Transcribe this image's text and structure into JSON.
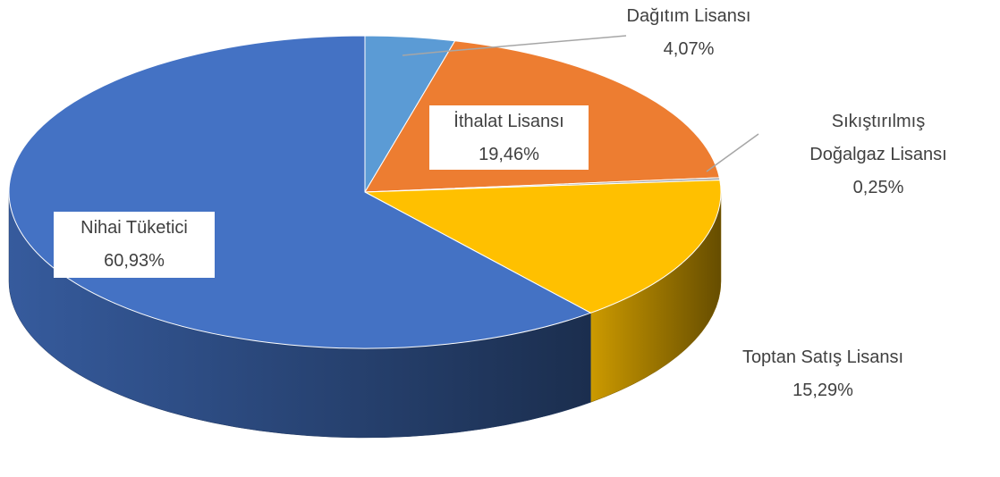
{
  "chart_data": {
    "type": "pie",
    "categories": [
      "Dağıtım Lisansı",
      "İthalat Lisansı",
      "Sıkıştırılmış Doğalgaz Lisansı",
      "Toptan Satış Lisansı",
      "Nihai Tüketici"
    ],
    "values": [
      4.07,
      19.46,
      0.25,
      15.29,
      60.93
    ],
    "value_labels": [
      "4,07%",
      "19,46%",
      "0,25%",
      "15,29%",
      "60,93%"
    ],
    "colors": [
      "#5b9bd5",
      "#ed7d31",
      "#a5a5a5",
      "#ffc000",
      "#4472c4"
    ]
  }
}
